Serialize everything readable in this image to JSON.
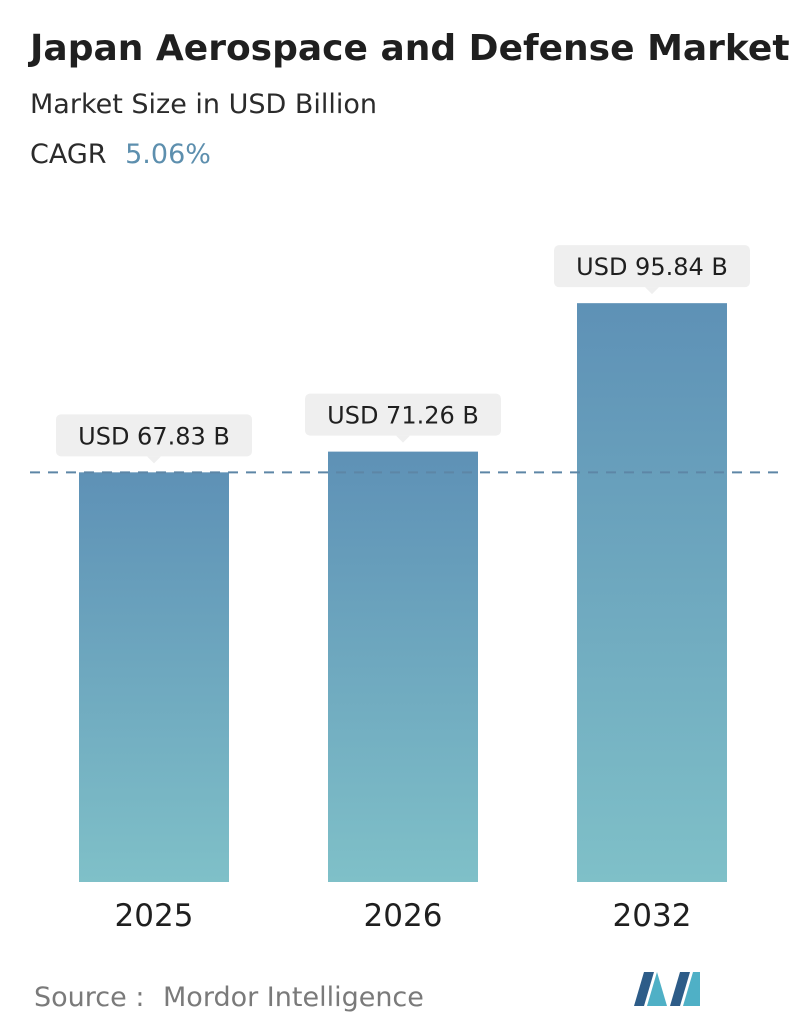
{
  "chart_data": {
    "type": "bar",
    "title": "Japan Aerospace and Defense Market",
    "subtitle": "Market Size in USD Billion",
    "cagr_label": "CAGR",
    "cagr_value": "5.06%",
    "categories": [
      "2025",
      "2026",
      "2032"
    ],
    "values": [
      67.83,
      71.26,
      95.84
    ],
    "value_labels": [
      "USD 67.83 B",
      "USD 71.26 B",
      "USD 95.84 B"
    ],
    "reference_line_value": 67.83,
    "ylim": [
      0,
      101
    ],
    "grid": false,
    "legend": "none"
  },
  "source": {
    "label": "Source :",
    "name": "Mordor Intelligence"
  },
  "colors": {
    "title": "#1f1f1f",
    "subtitle": "#2b2b2b",
    "cagr_value": "#5d8fae",
    "bar_top": "#5e91b6",
    "bar_bottom": "#7fc0c8",
    "reference_line": "#5d86a6",
    "label_box": "#efefef",
    "label_text": "#1f1f1f",
    "axis_text": "#1f1f1f",
    "source_text": "#7a7a7a",
    "logo_dark": "#2d5c88",
    "logo_light": "#4fb0c6"
  },
  "logo": "mordor-intelligence-logo"
}
